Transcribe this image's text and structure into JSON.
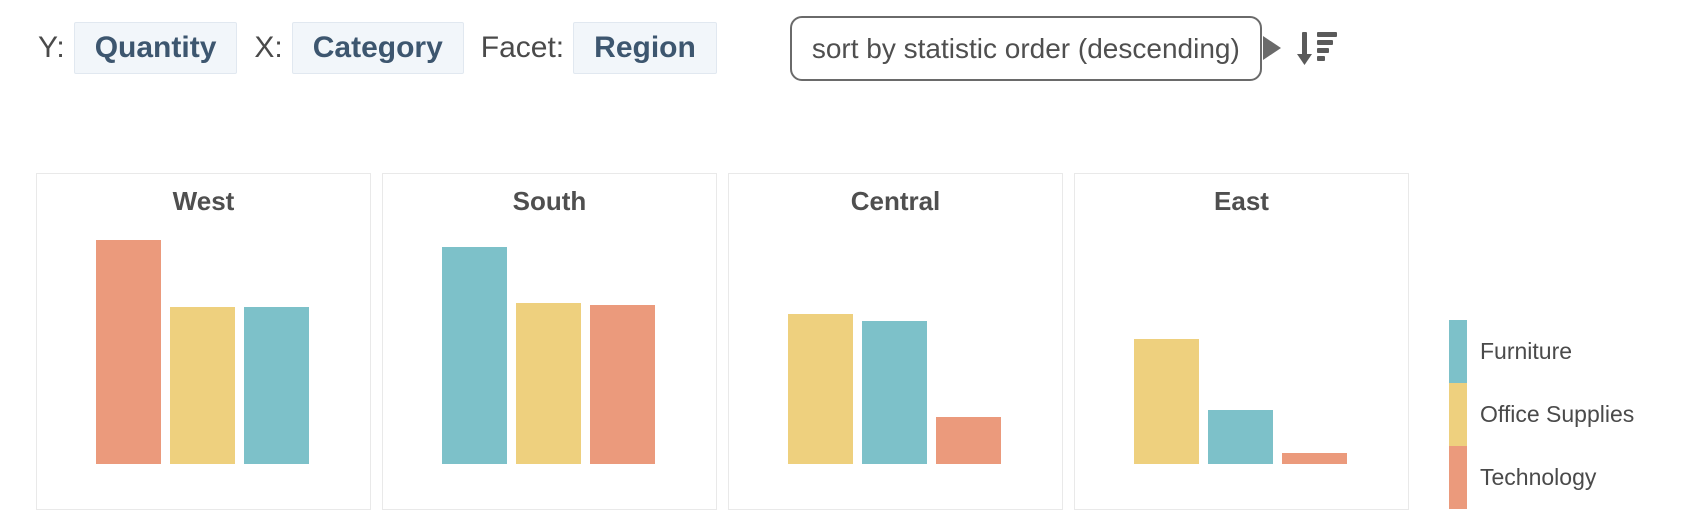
{
  "toolbar": {
    "y_label": "Y:",
    "y_value": "Quantity",
    "x_label": "X:",
    "x_value": "Category",
    "facet_label": "Facet:",
    "facet_value": "Region",
    "sort_tooltip": "sort by statistic order (descending)",
    "sort_icon": "sort-descending-icon"
  },
  "colors": {
    "furniture": "#7dc1c9",
    "office_supplies": "#eed07e",
    "technology": "#eb9a7c",
    "chip_bg": "#f2f6fa",
    "chip_border": "#e1e8f0",
    "chip_text": "#3d566f",
    "label_text": "#4a4a4a",
    "panel_border": "#e9e9e9",
    "title_text": "#4f4f4f",
    "tooltip_border": "#6a6a6a",
    "icon": "#5a5a5a"
  },
  "legend": {
    "items": [
      {
        "label": "Furniture",
        "color": "#7dc1c9"
      },
      {
        "label": "Office Supplies",
        "color": "#eed07e"
      },
      {
        "label": "Technology",
        "color": "#eb9a7c"
      }
    ]
  },
  "chart_data": {
    "type": "bar",
    "y_field": "Quantity",
    "x_field": "Category",
    "facet_field": "Region",
    "sort": "by statistic order (descending)",
    "axes_visible": false,
    "value_units": "relative height, 100 = tallest bar (no axis labels visible)",
    "category_colors": {
      "Furniture": "#7dc1c9",
      "Office Supplies": "#eed07e",
      "Technology": "#eb9a7c"
    },
    "facets": [
      {
        "title": "West",
        "bars": [
          {
            "category": "Technology",
            "value": 100
          },
          {
            "category": "Office Supplies",
            "value": 70
          },
          {
            "category": "Furniture",
            "value": 70
          }
        ]
      },
      {
        "title": "South",
        "bars": [
          {
            "category": "Furniture",
            "value": 97
          },
          {
            "category": "Office Supplies",
            "value": 72
          },
          {
            "category": "Technology",
            "value": 71
          }
        ]
      },
      {
        "title": "Central",
        "bars": [
          {
            "category": "Office Supplies",
            "value": 67
          },
          {
            "category": "Furniture",
            "value": 64
          },
          {
            "category": "Technology",
            "value": 21
          }
        ]
      },
      {
        "title": "East",
        "bars": [
          {
            "category": "Office Supplies",
            "value": 56
          },
          {
            "category": "Furniture",
            "value": 24
          },
          {
            "category": "Technology",
            "value": 5
          }
        ]
      }
    ]
  }
}
